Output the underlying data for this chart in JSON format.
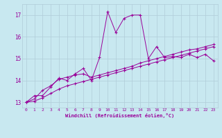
{
  "xlabel": "Windchill (Refroidissement éolien,°C)",
  "bg_color": "#c8e8f0",
  "grid_color": "#b0ccd8",
  "line_color": "#990099",
  "xlim": [
    -0.5,
    23.5
  ],
  "ylim": [
    12.75,
    17.5
  ],
  "xticks": [
    0,
    1,
    2,
    3,
    4,
    5,
    6,
    7,
    8,
    9,
    10,
    11,
    12,
    13,
    14,
    15,
    16,
    17,
    18,
    19,
    20,
    21,
    22,
    23
  ],
  "yticks": [
    13,
    14,
    15,
    16,
    17
  ],
  "line1_x": [
    0,
    1,
    2,
    3,
    4,
    5,
    6,
    7,
    8,
    9,
    10,
    11,
    12,
    13,
    14,
    15,
    16,
    17,
    18,
    19,
    20,
    21,
    22,
    23
  ],
  "line1_y": [
    13.0,
    13.3,
    13.3,
    13.7,
    14.1,
    14.0,
    14.3,
    14.55,
    14.0,
    15.05,
    17.15,
    16.2,
    16.85,
    17.0,
    17.0,
    15.0,
    15.55,
    15.05,
    15.1,
    15.05,
    15.2,
    15.05,
    15.2,
    14.9
  ],
  "line2_x": [
    0,
    1,
    2,
    3,
    4,
    5,
    6,
    7,
    8,
    9,
    10,
    11,
    12,
    13,
    14,
    15,
    16,
    17,
    18,
    19,
    20,
    21,
    22,
    23
  ],
  "line2_y": [
    13.0,
    13.15,
    13.55,
    13.75,
    14.05,
    14.15,
    14.25,
    14.3,
    14.15,
    14.25,
    14.35,
    14.45,
    14.55,
    14.65,
    14.8,
    14.9,
    15.0,
    15.1,
    15.2,
    15.3,
    15.4,
    15.45,
    15.55,
    15.65
  ],
  "line3_x": [
    0,
    1,
    2,
    3,
    4,
    5,
    6,
    7,
    8,
    9,
    10,
    11,
    12,
    13,
    14,
    15,
    16,
    17,
    18,
    19,
    20,
    21,
    22,
    23
  ],
  "line3_y": [
    13.0,
    13.05,
    13.2,
    13.4,
    13.6,
    13.75,
    13.85,
    13.95,
    14.05,
    14.15,
    14.25,
    14.35,
    14.45,
    14.55,
    14.65,
    14.75,
    14.85,
    14.95,
    15.05,
    15.15,
    15.25,
    15.35,
    15.45,
    15.55
  ]
}
